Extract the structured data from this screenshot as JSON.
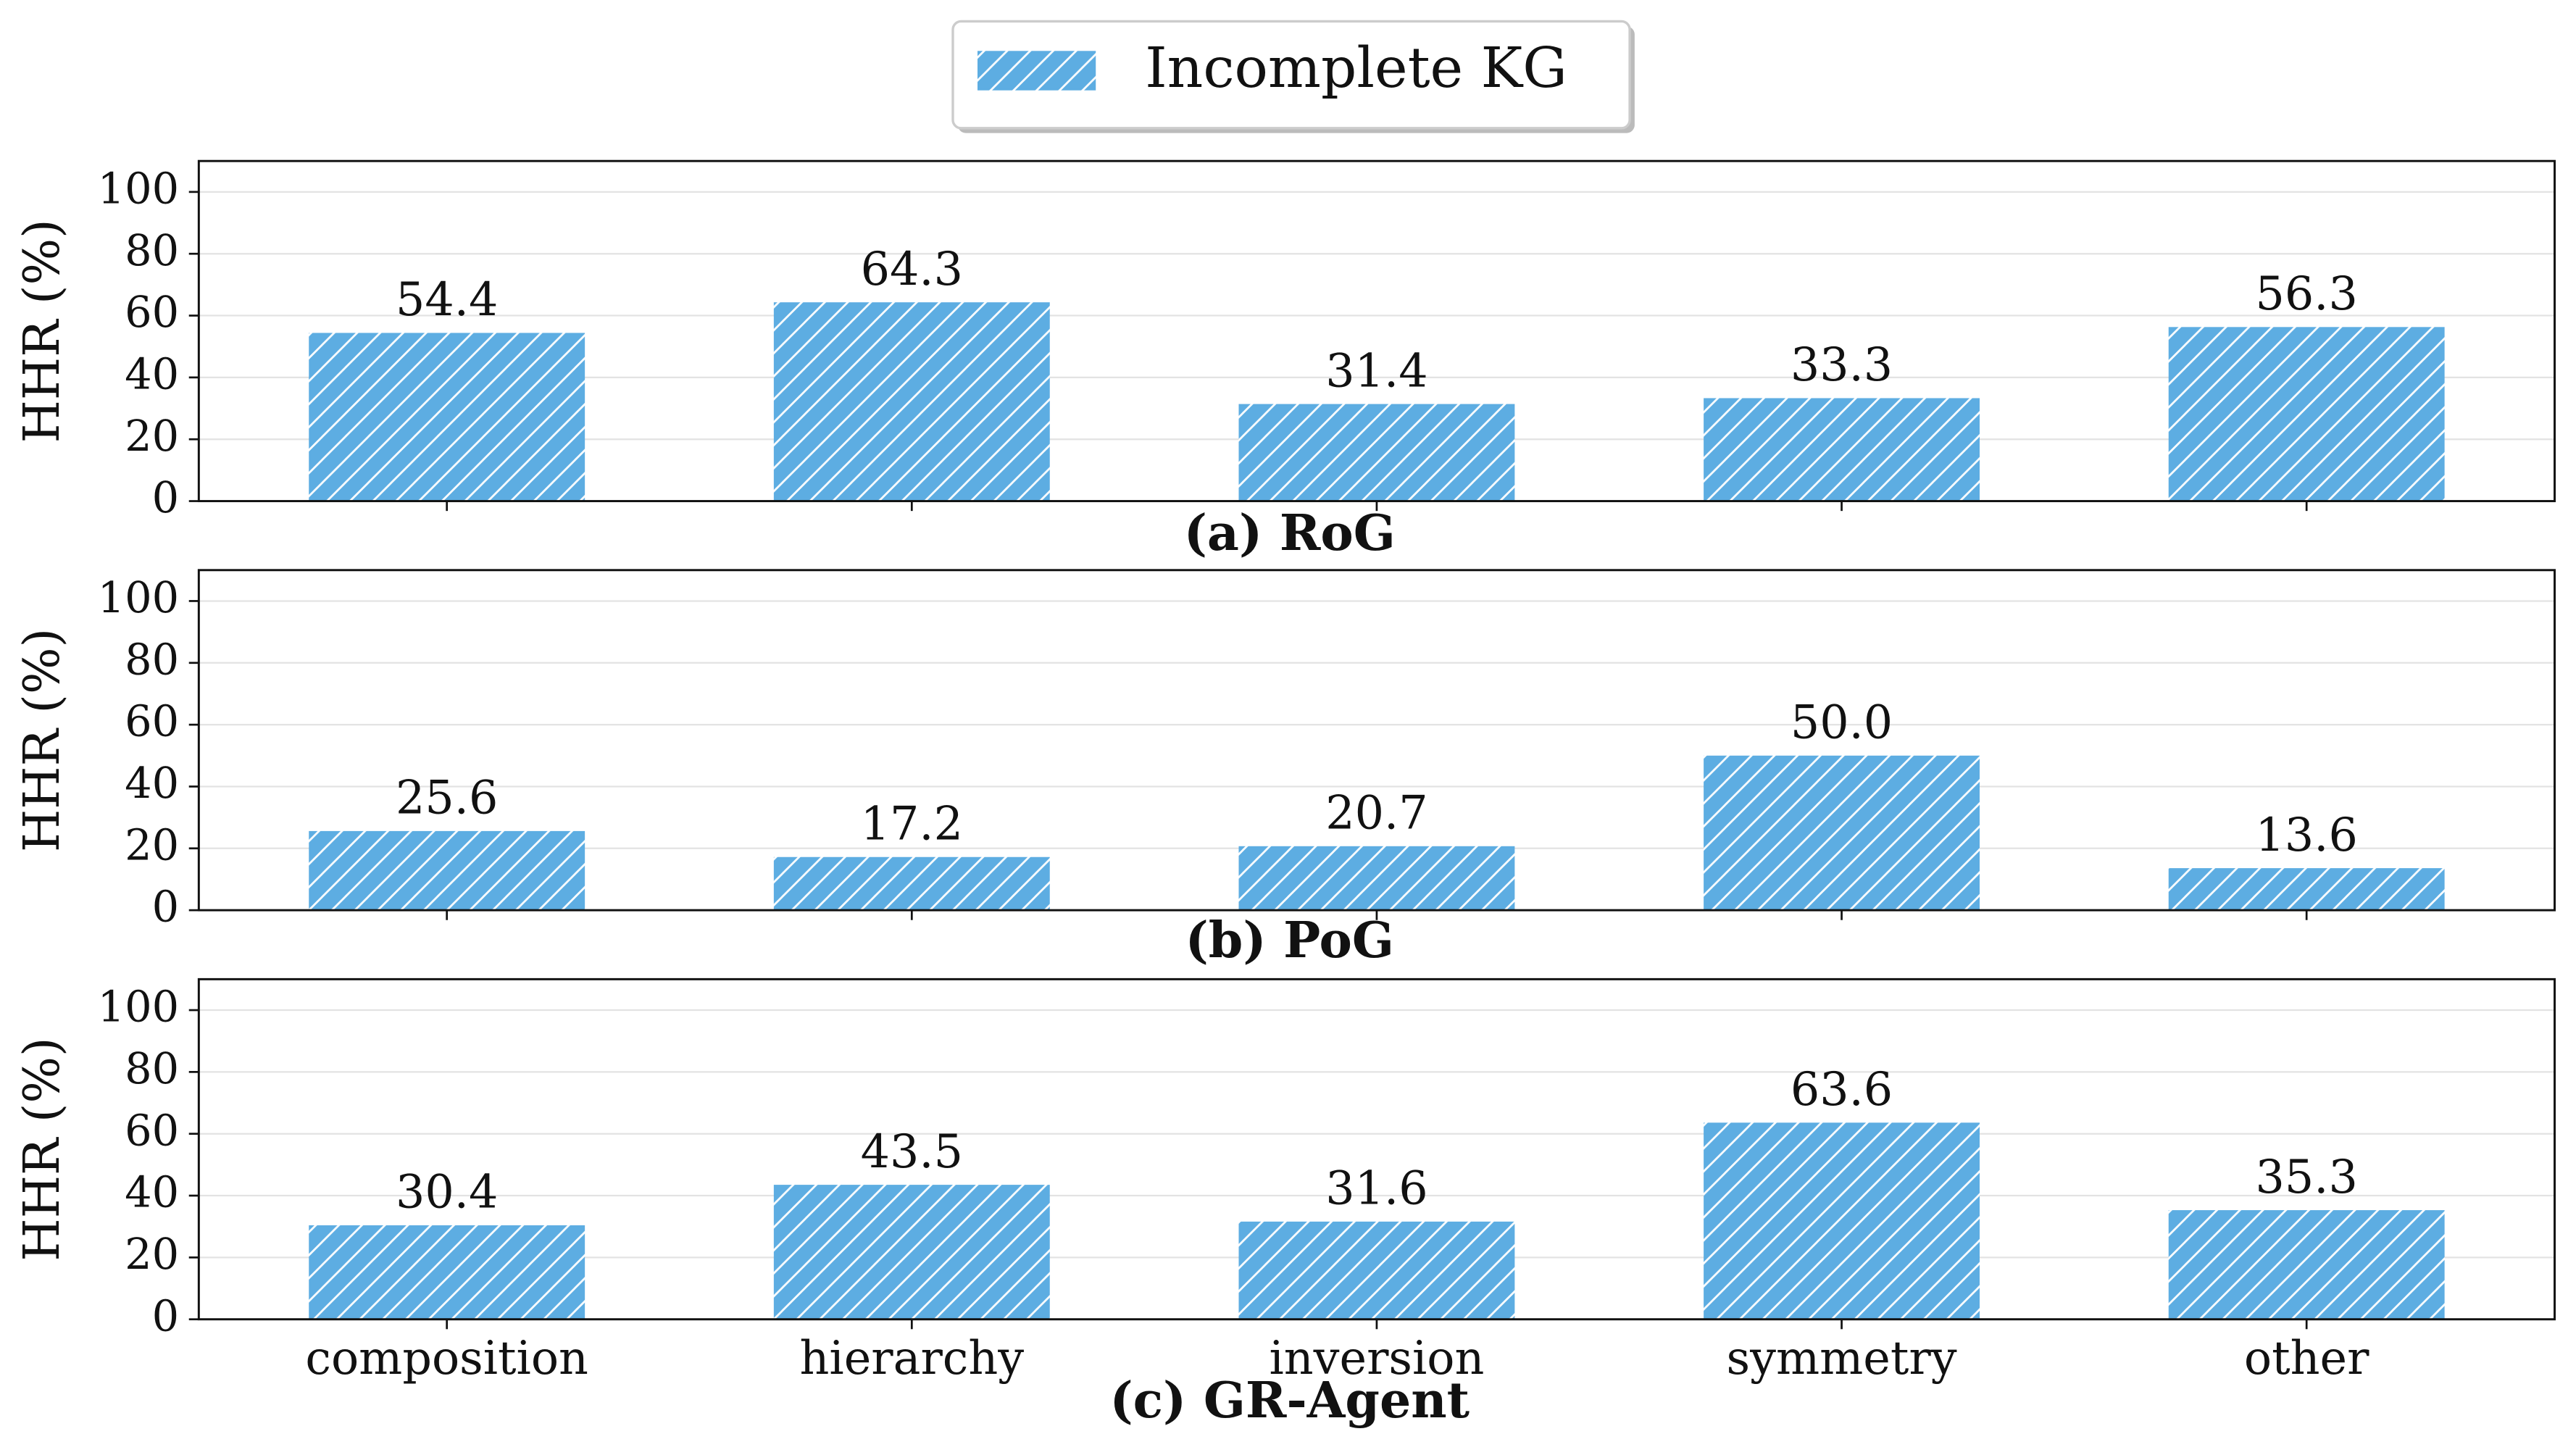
{
  "legend": {
    "label": "Incomplete KG",
    "color": "#5dade2"
  },
  "chart_data": [
    {
      "type": "bar",
      "title": "(a) RoG",
      "y_label": "HHR (%)",
      "color": "#5dade2",
      "categories": [
        null,
        null,
        null,
        null,
        null
      ],
      "values": [
        54.4,
        64.3,
        31.4,
        33.3,
        56.3
      ],
      "ylim": [
        0,
        110
      ],
      "yticks": [
        0,
        20,
        40,
        60,
        80,
        100
      ],
      "grid": true
    },
    {
      "type": "bar",
      "title": "(b) PoG",
      "y_label": "HHR (%)",
      "color": "#5dade2",
      "categories": [
        null,
        null,
        null,
        null,
        null
      ],
      "values": [
        25.6,
        17.2,
        20.7,
        50.0,
        13.6
      ],
      "value_labels": [
        "25.6",
        "17.2",
        "20.7",
        "50.0",
        "13.6"
      ],
      "ylim": [
        0,
        110
      ],
      "yticks": [
        0,
        20,
        40,
        60,
        80,
        100
      ],
      "grid": true
    },
    {
      "type": "bar",
      "title": "(c) GR-Agent",
      "y_label": "HHR (%)",
      "color": "#5dade2",
      "categories": [
        "composition",
        "hierarchy",
        "inversion",
        "symmetry",
        "other"
      ],
      "values": [
        30.4,
        43.5,
        31.6,
        63.6,
        35.3
      ],
      "ylim": [
        0,
        110
      ],
      "yticks": [
        0,
        20,
        40,
        60,
        80,
        100
      ],
      "grid": true
    }
  ]
}
